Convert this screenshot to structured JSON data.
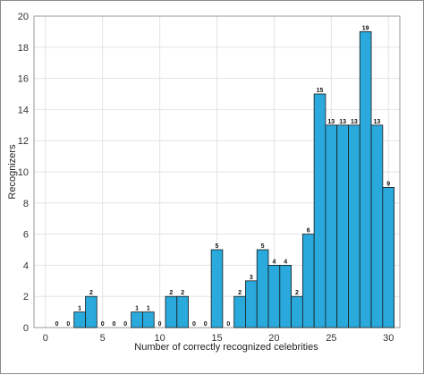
{
  "chart_data": {
    "type": "bar",
    "xlabel": "Number of correctly recognized celebrities",
    "ylabel": "Recognizers",
    "xlim": [
      -1,
      31
    ],
    "ylim": [
      0,
      20
    ],
    "x_ticks": [
      0,
      5,
      10,
      15,
      20,
      25,
      30
    ],
    "y_ticks": [
      0,
      2,
      4,
      6,
      8,
      10,
      12,
      14,
      16,
      18,
      20
    ],
    "grid": true,
    "bar_color": "#29a9dc",
    "x": [
      1,
      2,
      3,
      4,
      5,
      6,
      7,
      8,
      9,
      10,
      11,
      12,
      13,
      14,
      15,
      16,
      17,
      18,
      19,
      20,
      21,
      22,
      23,
      24,
      25,
      26,
      27,
      28,
      29,
      30
    ],
    "values": [
      0,
      0,
      1,
      2,
      0,
      0,
      0,
      1,
      1,
      0,
      2,
      2,
      0,
      0,
      5,
      0,
      2,
      3,
      5,
      4,
      4,
      2,
      6,
      15,
      13,
      13,
      13,
      19,
      13,
      9
    ]
  }
}
